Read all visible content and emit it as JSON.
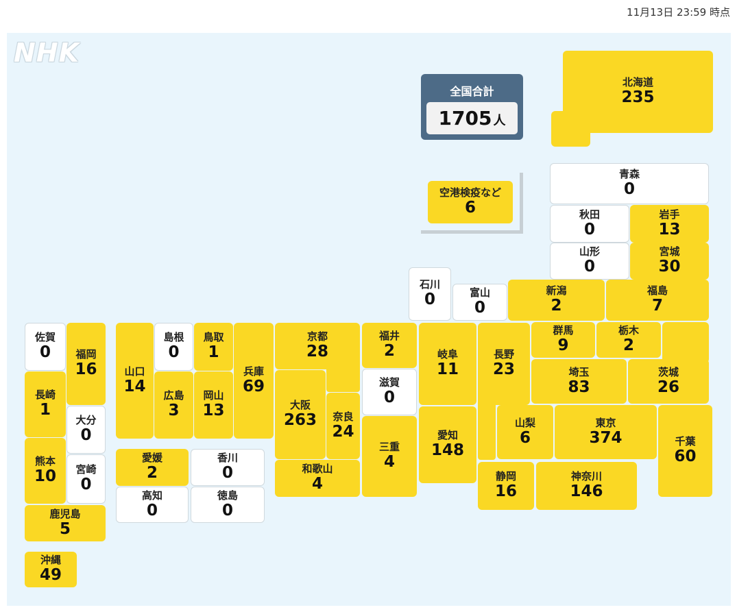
{
  "timestamp": "11月13日 23:59 時点",
  "logo": "NHK",
  "total": {
    "label": "全国合計",
    "value": "1705",
    "unit": "人"
  },
  "airport": {
    "name": "空港検疫など",
    "value": "6"
  },
  "colors": {
    "has_cases": "#fad824",
    "no_cases": "#ffffff",
    "background": "#e9f5fc",
    "total_box": "#4d6b87"
  },
  "prefectures": {
    "hokkaido": {
      "name": "北海道",
      "value": "235"
    },
    "aomori": {
      "name": "青森",
      "value": "0"
    },
    "akita": {
      "name": "秋田",
      "value": "0"
    },
    "iwate": {
      "name": "岩手",
      "value": "13"
    },
    "yamagata": {
      "name": "山形",
      "value": "0"
    },
    "miyagi": {
      "name": "宮城",
      "value": "30"
    },
    "ishikawa": {
      "name": "石川",
      "value": "0"
    },
    "toyama": {
      "name": "富山",
      "value": "0"
    },
    "niigata": {
      "name": "新潟",
      "value": "2"
    },
    "fukushima": {
      "name": "福島",
      "value": "7"
    },
    "saga": {
      "name": "佐賀",
      "value": "0"
    },
    "fukuoka": {
      "name": "福岡",
      "value": "16"
    },
    "yamaguchi": {
      "name": "山口",
      "value": "14"
    },
    "shimane": {
      "name": "島根",
      "value": "0"
    },
    "tottori": {
      "name": "鳥取",
      "value": "1"
    },
    "hyogo": {
      "name": "兵庫",
      "value": "69"
    },
    "kyoto": {
      "name": "京都",
      "value": "28"
    },
    "fukui": {
      "name": "福井",
      "value": "2"
    },
    "gifu": {
      "name": "岐阜",
      "value": "11"
    },
    "nagano": {
      "name": "長野",
      "value": "23"
    },
    "gunma": {
      "name": "群馬",
      "value": "9"
    },
    "tochigi": {
      "name": "栃木",
      "value": "2"
    },
    "ibaraki": {
      "name": "茨城",
      "value": "26"
    },
    "nagasaki": {
      "name": "長崎",
      "value": "1"
    },
    "oita": {
      "name": "大分",
      "value": "0"
    },
    "hiroshima": {
      "name": "広島",
      "value": "3"
    },
    "okayama": {
      "name": "岡山",
      "value": "13"
    },
    "osaka": {
      "name": "大阪",
      "value": "263"
    },
    "nara": {
      "name": "奈良",
      "value": "24"
    },
    "shiga": {
      "name": "滋賀",
      "value": "0"
    },
    "saitama": {
      "name": "埼玉",
      "value": "83"
    },
    "kumamoto": {
      "name": "熊本",
      "value": "10"
    },
    "miyazaki": {
      "name": "宮崎",
      "value": "0"
    },
    "mie": {
      "name": "三重",
      "value": "4"
    },
    "aichi": {
      "name": "愛知",
      "value": "148"
    },
    "yamanashi": {
      "name": "山梨",
      "value": "6"
    },
    "tokyo": {
      "name": "東京",
      "value": "374"
    },
    "chiba": {
      "name": "千葉",
      "value": "60"
    },
    "ehime": {
      "name": "愛媛",
      "value": "2"
    },
    "kagawa": {
      "name": "香川",
      "value": "0"
    },
    "kochi": {
      "name": "高知",
      "value": "0"
    },
    "tokushima": {
      "name": "徳島",
      "value": "0"
    },
    "wakayama": {
      "name": "和歌山",
      "value": "4"
    },
    "shizuoka": {
      "name": "静岡",
      "value": "16"
    },
    "kanagawa": {
      "name": "神奈川",
      "value": "146"
    },
    "kagoshima": {
      "name": "鹿児島",
      "value": "5"
    },
    "okinawa": {
      "name": "沖縄",
      "value": "49"
    }
  }
}
